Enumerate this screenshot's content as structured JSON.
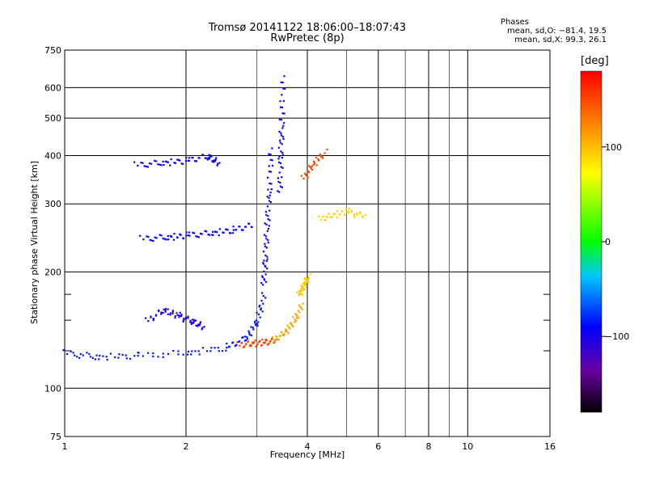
{
  "chart_data": {
    "type": "scatter",
    "title": "Tromsø 20141122 18:06:00–18:07:43",
    "subtitle": "RwPretec (8p)",
    "xlabel": "Frequency [MHz]",
    "ylabel": "Stationary phase Virtual Height [km]",
    "x_scale": "log",
    "y_scale": "log",
    "xlim": [
      1,
      16
    ],
    "ylim": [
      75,
      750
    ],
    "x_ticks": [
      1,
      2,
      4,
      6,
      8,
      10,
      16
    ],
    "x_minor_ticks": [
      3,
      5,
      7,
      9
    ],
    "y_ticks": [
      75,
      100,
      200,
      300,
      400,
      500,
      600,
      750
    ],
    "y_minor_ticks": [
      125,
      150,
      175
    ],
    "grid": true,
    "stats": {
      "title": "Phases",
      "line_o": "mean, sd,O: −81.4, 19.5",
      "line_x": "mean, sd,X:  99.3, 26.1"
    },
    "colorbar": {
      "unit": "[deg]",
      "range": [
        -180,
        180
      ],
      "ticks": [
        100,
        0,
        -100
      ],
      "tick_labels": [
        "100",
        "0",
        "−100"
      ],
      "colormap": "rainbow"
    },
    "series": [
      {
        "traces": [
          {
            "x": [
              1.0,
              1.2,
              1.5,
              2.0,
              2.5,
              2.8,
              3.0,
              3.1
            ],
            "y": [
              124,
              121,
              122,
              124,
              128,
              135,
              150,
              175
            ],
            "phase": -85
          },
          {
            "x": [
              3.1,
              3.13,
              3.16,
              3.2,
              3.24
            ],
            "y": [
              185,
              215,
              260,
              320,
              420
            ],
            "phase": -95
          },
          {
            "x": [
              3.4,
              3.42,
              3.44,
              3.46
            ],
            "y": [
              320,
              400,
              480,
              640
            ],
            "phase": -92
          },
          {
            "x": [
              1.55,
              1.8,
              2.0,
              2.3,
              2.6,
              2.9
            ],
            "y": [
              245,
              247,
              250,
              253,
              258,
              265
            ],
            "phase": -90
          },
          {
            "x": [
              1.5,
              1.75,
              2.0,
              2.25,
              2.4
            ],
            "y": [
              380,
              385,
              390,
              400,
              385
            ],
            "phase": -95
          },
          {
            "x": [
              1.6,
              1.75,
              1.9,
              2.05,
              2.2
            ],
            "y": [
              150,
              160,
              155,
              150,
              145
            ],
            "phase": -105
          },
          {
            "x": [
              2.7,
              2.9,
              3.1,
              3.3
            ],
            "y": [
              130,
              131,
              132,
              133
            ],
            "phase": 150
          },
          {
            "x": [
              3.3,
              3.5,
              3.7,
              3.85
            ],
            "y": [
              134,
              140,
              150,
              165
            ],
            "phase": 110
          },
          {
            "x": [
              3.8,
              3.9,
              4.0
            ],
            "y": [
              175,
              185,
              195
            ],
            "phase": 95
          },
          {
            "x": [
              4.3,
              4.6,
              5.0,
              5.5
            ],
            "y": [
              275,
              282,
              288,
              280
            ],
            "phase": 90
          },
          {
            "x": [
              3.9,
              4.1,
              4.4
            ],
            "y": [
              350,
              380,
              410
            ],
            "phase": 150
          }
        ]
      }
    ]
  }
}
